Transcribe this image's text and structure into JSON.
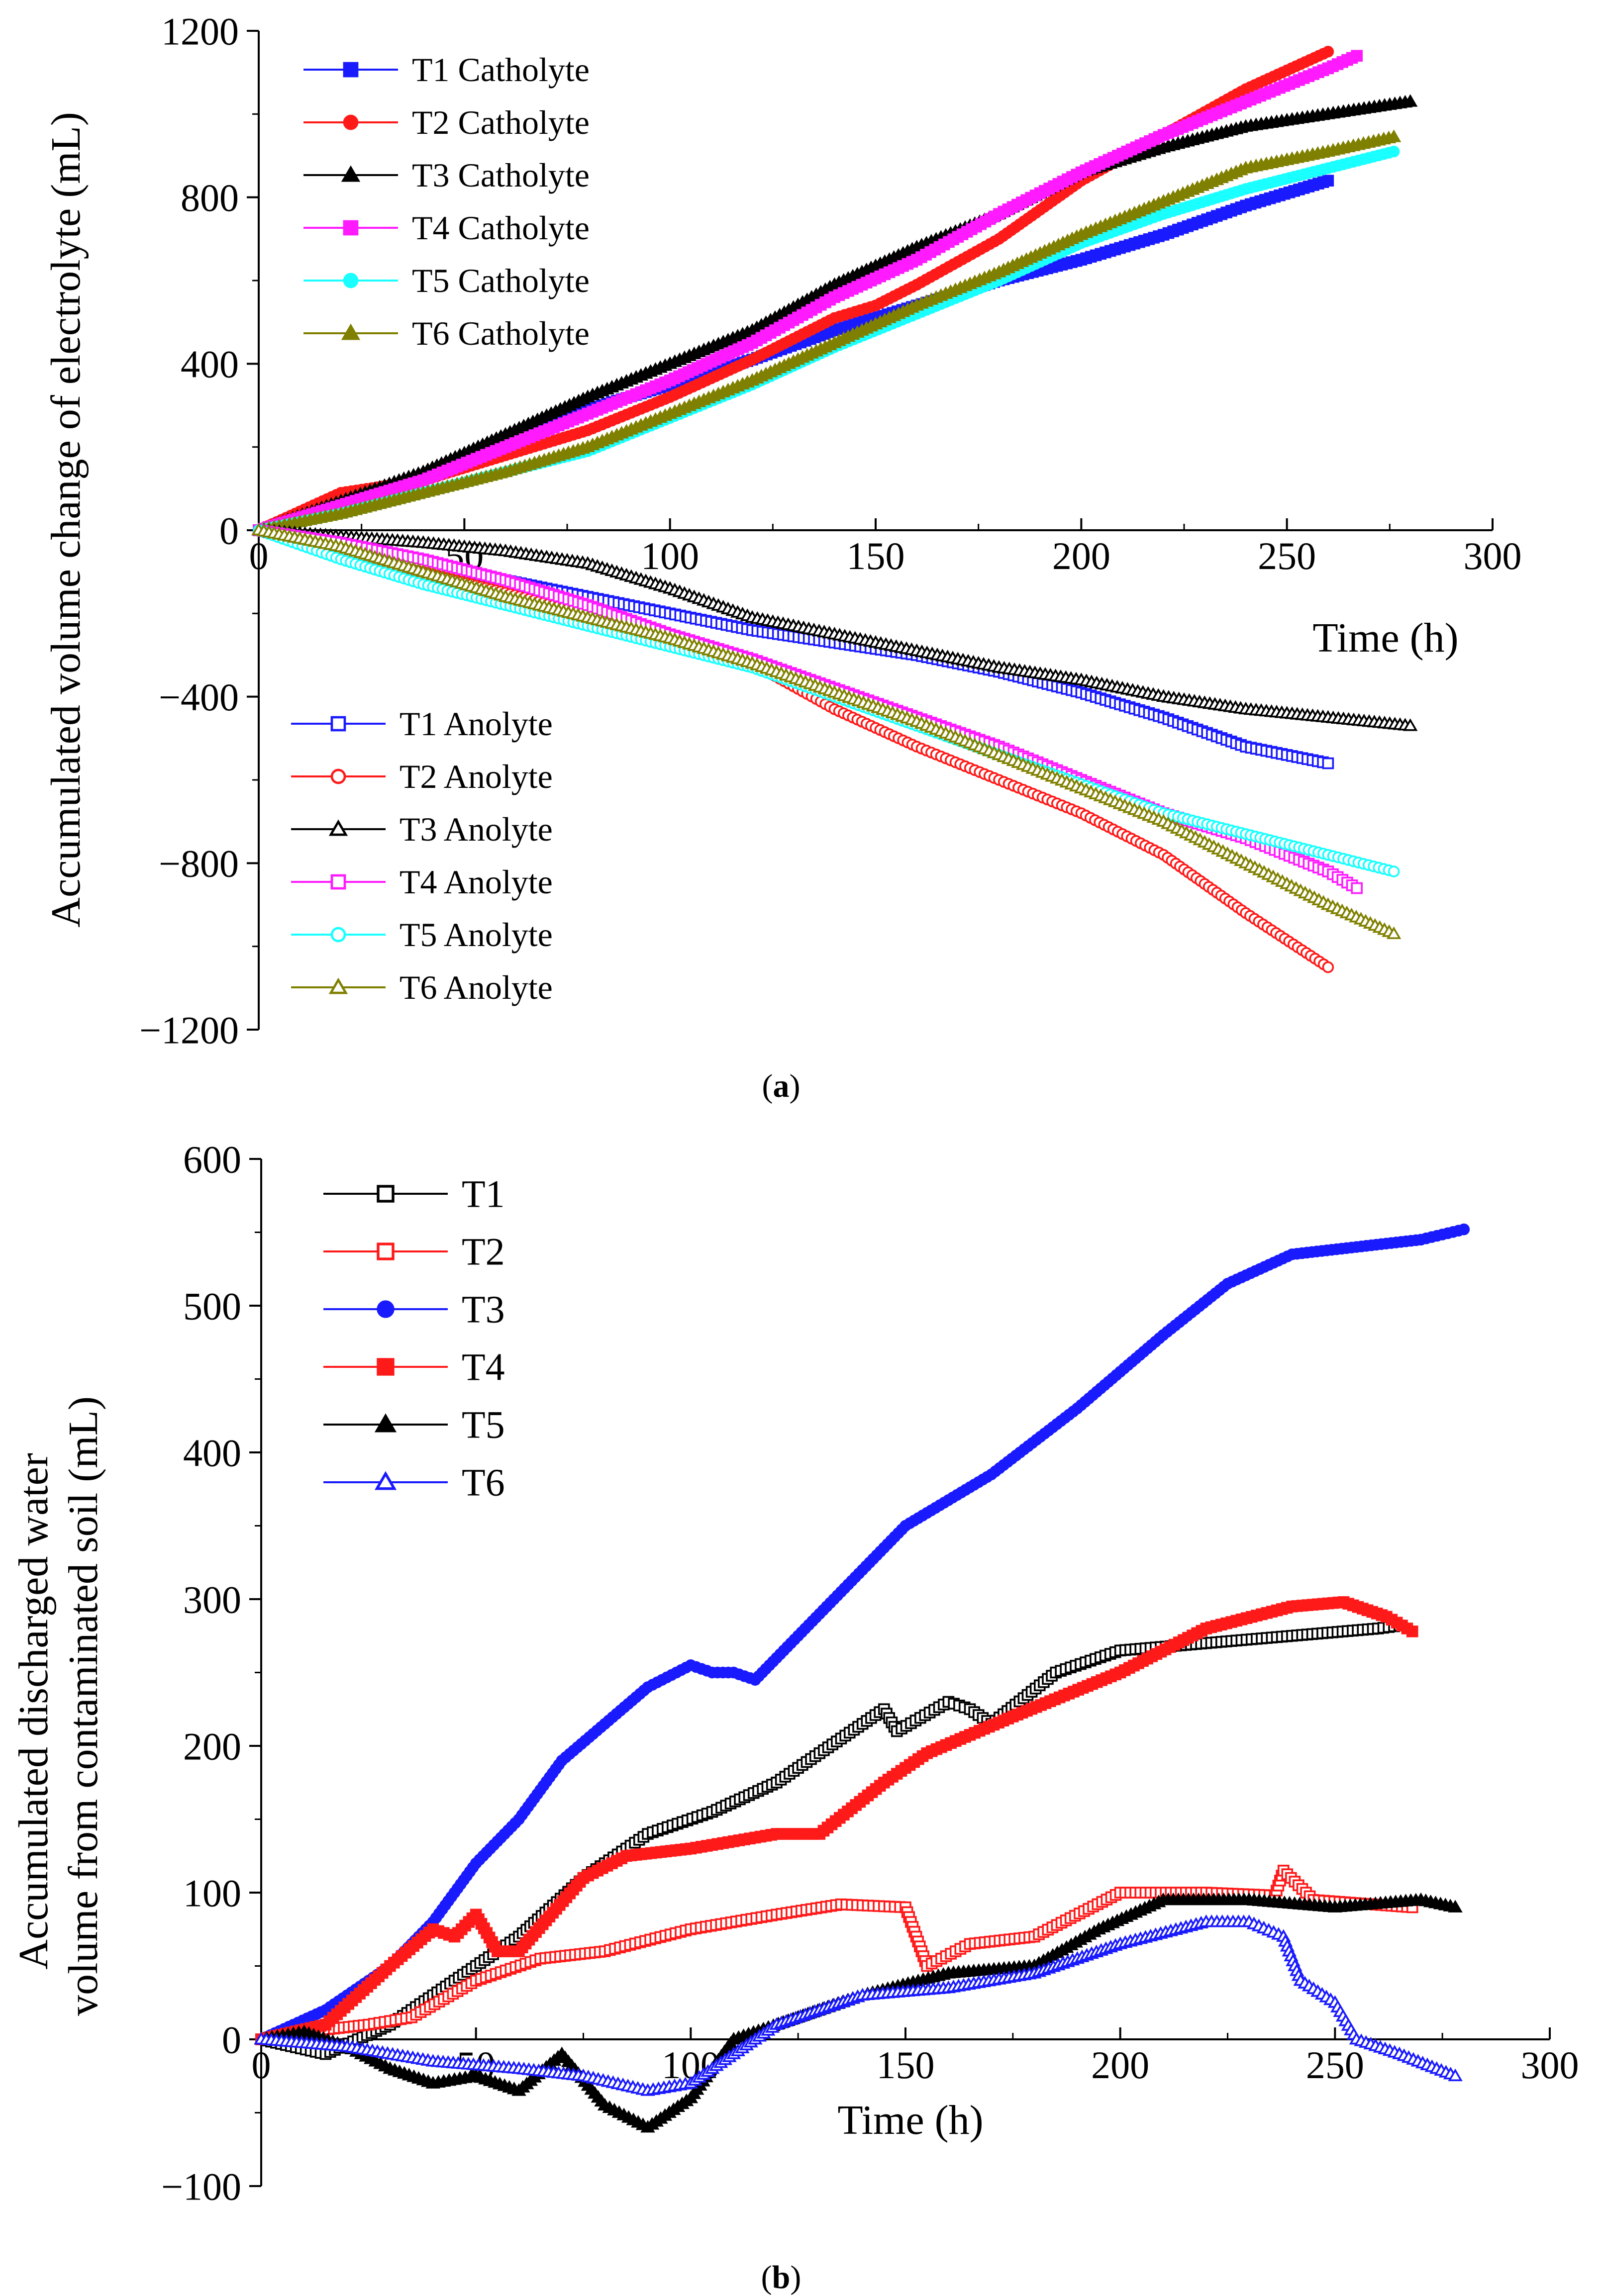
{
  "chart_data": [
    {
      "type": "line",
      "panel_label": "a",
      "xlabel": "Time (h)",
      "ylabel": "Accumulated volume change of electrolyte (mL)",
      "xlim": [
        0,
        300
      ],
      "ylim": [
        -1200,
        1200
      ],
      "xticks": [
        0,
        50,
        100,
        150,
        200,
        250,
        300
      ],
      "xtick_labels": [
        "0",
        "50",
        "100",
        "150",
        "200",
        "250",
        "300"
      ],
      "yticks": [
        -1200,
        -800,
        -400,
        0,
        400,
        800,
        1200
      ],
      "ytick_labels": [
        "−1200",
        "−800",
        "−400",
        "0",
        "400",
        "800",
        "1200"
      ],
      "legend_groups": [
        "top-left",
        "bottom-left"
      ],
      "series": [
        {
          "name": "T1 Catholyte",
          "color": "#1a1aff",
          "marker": "square",
          "filled": true,
          "legend_group": 0,
          "x": [
            0,
            20,
            40,
            60,
            80,
            100,
            120,
            140,
            160,
            180,
            200,
            220,
            240,
            260
          ],
          "y": [
            0,
            60,
            130,
            210,
            290,
            350,
            410,
            480,
            540,
            600,
            650,
            710,
            780,
            840
          ]
        },
        {
          "name": "T2 Catholyte",
          "color": "#ff1a1a",
          "marker": "circle",
          "filled": true,
          "legend_group": 0,
          "x": [
            0,
            20,
            40,
            60,
            80,
            100,
            120,
            140,
            150,
            160,
            180,
            200,
            220,
            240,
            260
          ],
          "y": [
            0,
            90,
            120,
            180,
            240,
            320,
            410,
            510,
            540,
            590,
            700,
            840,
            950,
            1060,
            1150
          ]
        },
        {
          "name": "T3 Catholyte",
          "color": "#000000",
          "marker": "triangle",
          "filled": true,
          "legend_group": 0,
          "x": [
            0,
            20,
            40,
            60,
            80,
            100,
            120,
            140,
            160,
            180,
            200,
            220,
            240,
            260,
            280
          ],
          "y": [
            0,
            70,
            140,
            230,
            320,
            400,
            480,
            590,
            680,
            760,
            860,
            920,
            970,
            1000,
            1030
          ]
        },
        {
          "name": "T4 Catholyte",
          "color": "#ff1aff",
          "marker": "square",
          "filled": true,
          "legend_group": 0,
          "x": [
            0,
            20,
            40,
            60,
            80,
            100,
            120,
            140,
            160,
            180,
            200,
            220,
            240,
            260,
            267
          ],
          "y": [
            0,
            60,
            120,
            200,
            280,
            360,
            450,
            560,
            650,
            760,
            860,
            950,
            1030,
            1110,
            1140
          ]
        },
        {
          "name": "T5 Catholyte",
          "color": "#1affff",
          "marker": "circle",
          "filled": true,
          "legend_group": 0,
          "x": [
            0,
            20,
            40,
            60,
            80,
            100,
            120,
            140,
            160,
            180,
            200,
            220,
            240,
            260,
            276
          ],
          "y": [
            0,
            40,
            90,
            140,
            190,
            270,
            350,
            440,
            520,
            600,
            690,
            760,
            820,
            870,
            910
          ]
        },
        {
          "name": "T6 Catholyte",
          "color": "#808000",
          "marker": "triangle",
          "filled": true,
          "legend_group": 0,
          "x": [
            0,
            20,
            40,
            60,
            80,
            100,
            120,
            140,
            160,
            180,
            200,
            220,
            240,
            260,
            276
          ],
          "y": [
            0,
            40,
            90,
            140,
            200,
            280,
            360,
            450,
            540,
            620,
            710,
            790,
            870,
            910,
            945
          ]
        },
        {
          "name": "T1 Anolyte",
          "color": "#1a1aff",
          "marker": "square",
          "filled": false,
          "legend_group": 1,
          "x": [
            0,
            20,
            40,
            60,
            80,
            100,
            120,
            140,
            160,
            180,
            200,
            220,
            240,
            260
          ],
          "y": [
            0,
            -40,
            -80,
            -120,
            -160,
            -200,
            -240,
            -270,
            -300,
            -340,
            -390,
            -450,
            -520,
            -560
          ]
        },
        {
          "name": "T2 Anolyte",
          "color": "#ff1a1a",
          "marker": "circle",
          "filled": false,
          "legend_group": 1,
          "x": [
            0,
            20,
            40,
            60,
            80,
            100,
            120,
            140,
            160,
            180,
            200,
            220,
            240,
            260
          ],
          "y": [
            0,
            -60,
            -100,
            -150,
            -200,
            -250,
            -320,
            -430,
            -520,
            -600,
            -680,
            -780,
            -920,
            -1050
          ]
        },
        {
          "name": "T3 Anolyte",
          "color": "#000000",
          "marker": "triangle",
          "filled": false,
          "legend_group": 1,
          "x": [
            0,
            20,
            40,
            60,
            80,
            100,
            120,
            140,
            160,
            180,
            200,
            220,
            240,
            260,
            280
          ],
          "y": [
            0,
            -15,
            -30,
            -50,
            -80,
            -140,
            -210,
            -250,
            -290,
            -330,
            -360,
            -400,
            -430,
            -450,
            -470
          ]
        },
        {
          "name": "T4 Anolyte",
          "color": "#ff1aff",
          "marker": "square",
          "filled": false,
          "legend_group": 1,
          "x": [
            0,
            20,
            40,
            60,
            80,
            100,
            120,
            140,
            160,
            180,
            200,
            220,
            240,
            260,
            267
          ],
          "y": [
            0,
            -30,
            -70,
            -120,
            -180,
            -250,
            -310,
            -380,
            -450,
            -520,
            -600,
            -680,
            -740,
            -820,
            -860
          ]
        },
        {
          "name": "T5 Anolyte",
          "color": "#1affff",
          "marker": "circle",
          "filled": false,
          "legend_group": 1,
          "x": [
            0,
            20,
            40,
            60,
            80,
            100,
            120,
            140,
            160,
            180,
            200,
            220,
            240,
            260,
            276
          ],
          "y": [
            0,
            -70,
            -130,
            -180,
            -230,
            -280,
            -330,
            -400,
            -470,
            -540,
            -610,
            -680,
            -730,
            -780,
            -820
          ]
        },
        {
          "name": "T6 Anolyte",
          "color": "#808000",
          "marker": "triangle",
          "filled": false,
          "legend_group": 1,
          "x": [
            0,
            20,
            40,
            60,
            80,
            100,
            120,
            140,
            160,
            180,
            200,
            220,
            240,
            260,
            276
          ],
          "y": [
            0,
            -40,
            -100,
            -160,
            -210,
            -260,
            -320,
            -390,
            -460,
            -540,
            -620,
            -700,
            -800,
            -900,
            -970
          ]
        }
      ]
    },
    {
      "type": "line",
      "panel_label": "b",
      "xlabel": "Time (h)",
      "ylabel": [
        "Accumulated discharged water",
        "volume from contaminated soil (mL)"
      ],
      "xlim": [
        0,
        300
      ],
      "ylim": [
        -100,
        600
      ],
      "xticks": [
        0,
        50,
        100,
        150,
        200,
        250,
        300
      ],
      "xtick_labels": [
        "0",
        "50",
        "100",
        "150",
        "200",
        "250",
        "300"
      ],
      "yticks": [
        -100,
        0,
        100,
        200,
        300,
        400,
        500,
        600
      ],
      "ytick_labels": [
        "−100",
        "0",
        "100",
        "200",
        "300",
        "400",
        "500",
        "600"
      ],
      "legend_groups": [
        "top-left"
      ],
      "series": [
        {
          "name": "T1",
          "color": "#000000",
          "marker": "square",
          "filled": false,
          "legend_group": 0,
          "x": [
            0,
            15,
            30,
            45,
            60,
            75,
            90,
            105,
            120,
            135,
            145,
            148,
            160,
            165,
            170,
            185,
            200,
            220,
            240,
            260,
            265
          ],
          "y": [
            0,
            -10,
            10,
            40,
            70,
            110,
            140,
            155,
            175,
            205,
            225,
            210,
            230,
            225,
            215,
            250,
            265,
            270,
            275,
            280,
            282
          ]
        },
        {
          "name": "T2",
          "color": "#ff1a1a",
          "marker": "square",
          "filled": false,
          "legend_group": 0,
          "x": [
            0,
            10,
            25,
            35,
            50,
            65,
            80,
            100,
            120,
            135,
            150,
            155,
            165,
            180,
            200,
            220,
            236,
            238,
            245,
            268
          ],
          "y": [
            0,
            5,
            10,
            15,
            40,
            55,
            60,
            75,
            85,
            92,
            90,
            50,
            65,
            70,
            100,
            100,
            98,
            115,
            95,
            90
          ]
        },
        {
          "name": "T3",
          "color": "#1a1aff",
          "marker": "circle",
          "filled": true,
          "legend_group": 0,
          "x": [
            0,
            15,
            30,
            40,
            50,
            60,
            70,
            80,
            90,
            100,
            105,
            110,
            115,
            125,
            140,
            150,
            170,
            190,
            210,
            225,
            240,
            255,
            270,
            280
          ],
          "y": [
            0,
            20,
            50,
            80,
            120,
            150,
            190,
            215,
            240,
            255,
            250,
            250,
            245,
            275,
            320,
            350,
            385,
            430,
            480,
            515,
            535,
            540,
            545,
            552
          ]
        },
        {
          "name": "T4",
          "color": "#ff1a1a",
          "marker": "square",
          "filled": true,
          "legend_group": 0,
          "x": [
            0,
            15,
            30,
            40,
            45,
            50,
            55,
            60,
            75,
            85,
            100,
            110,
            120,
            130,
            145,
            155,
            175,
            200,
            220,
            240,
            252,
            262,
            268
          ],
          "y": [
            0,
            10,
            50,
            75,
            70,
            85,
            60,
            60,
            110,
            125,
            130,
            135,
            140,
            140,
            175,
            195,
            220,
            250,
            280,
            295,
            298,
            288,
            278
          ]
        },
        {
          "name": "T5",
          "color": "#000000",
          "marker": "triangle",
          "filled": true,
          "legend_group": 0,
          "x": [
            0,
            10,
            20,
            30,
            40,
            50,
            60,
            70,
            80,
            90,
            95,
            100,
            110,
            125,
            140,
            160,
            180,
            195,
            210,
            230,
            250,
            270,
            278
          ],
          "y": [
            0,
            5,
            -5,
            -20,
            -30,
            -25,
            -35,
            -10,
            -45,
            -60,
            -50,
            -40,
            0,
            15,
            30,
            45,
            50,
            75,
            95,
            95,
            90,
            95,
            90
          ]
        },
        {
          "name": "T6",
          "color": "#1a1aff",
          "marker": "triangle",
          "filled": false,
          "legend_group": 0,
          "x": [
            0,
            20,
            40,
            60,
            75,
            90,
            100,
            110,
            120,
            140,
            160,
            180,
            200,
            220,
            230,
            238,
            242,
            250,
            255,
            265,
            278
          ],
          "y": [
            0,
            -5,
            -15,
            -20,
            -25,
            -35,
            -30,
            -10,
            10,
            30,
            35,
            45,
            65,
            80,
            80,
            70,
            40,
            25,
            0,
            -10,
            -25
          ]
        }
      ]
    }
  ]
}
